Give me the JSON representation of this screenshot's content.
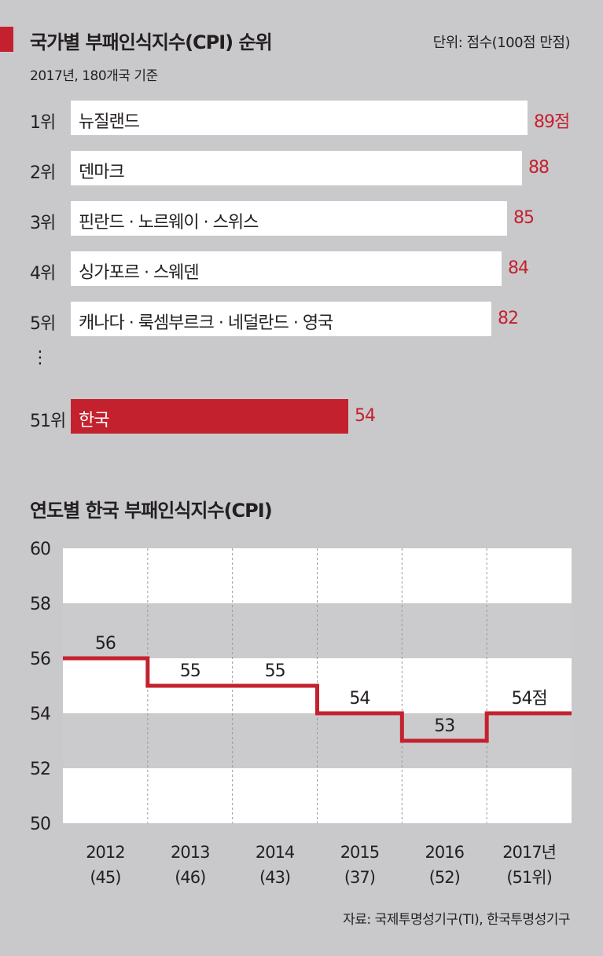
{
  "header": {
    "title": "국가별 부패인식지수(CPI) 순위",
    "unit": "단위: 점수(100점 만점)",
    "subtitle": "2017년, 180개국 기준"
  },
  "chart_data": [
    {
      "type": "bar",
      "orientation": "horizontal",
      "title": "국가별 부패인식지수(CPI) 순위",
      "subtitle": "2017년, 180개국 기준",
      "unit": "단위: 점수(100점 만점)",
      "ellipsis": "⋮",
      "ranks": [
        {
          "rank": "1위",
          "label": "뉴질랜드",
          "value": 89,
          "value_label": "89점",
          "highlight": false
        },
        {
          "rank": "2위",
          "label": "덴마크",
          "value": 88,
          "value_label": "88",
          "highlight": false
        },
        {
          "rank": "3위",
          "label": "핀란드 · 노르웨이 · 스위스",
          "value": 85,
          "value_label": "85",
          "highlight": false
        },
        {
          "rank": "4위",
          "label": "싱가포르 · 스웨덴",
          "value": 84,
          "value_label": "84",
          "highlight": false
        },
        {
          "rank": "5위",
          "label": "캐나다 · 룩셈부르크 · 네덜란드 · 영국",
          "value": 82,
          "value_label": "82",
          "highlight": false
        },
        {
          "rank": "51위",
          "label": "한국",
          "value": 54,
          "value_label": "54",
          "highlight": true
        }
      ],
      "colors": {
        "bar": "#ffffff",
        "highlight": "#c4212f",
        "value_text": "#c4212f"
      }
    },
    {
      "type": "line",
      "style": "step",
      "title": "연도별 한국 부패인식지수(CPI)",
      "categories": [
        "2012",
        "2013",
        "2014",
        "2015",
        "2016",
        "2017년"
      ],
      "rank_labels": [
        "(45)",
        "(46)",
        "(43)",
        "(37)",
        "(52)",
        "(51위)"
      ],
      "series": [
        {
          "values": [
            56,
            55,
            55,
            54,
            53,
            54
          ],
          "labels": [
            "56",
            "55",
            "55",
            "54",
            "53",
            "54점"
          ]
        }
      ],
      "yticks": [
        60,
        58,
        56,
        54,
        52,
        50
      ],
      "ylim": [
        50,
        60
      ],
      "grid": true,
      "colors": {
        "line": "#c4212f",
        "band_light": "#ffffff",
        "band_dark": "#cbcbcd"
      }
    }
  ],
  "source": "자료: 국제투명성기구(TI), 한국투명성기구"
}
